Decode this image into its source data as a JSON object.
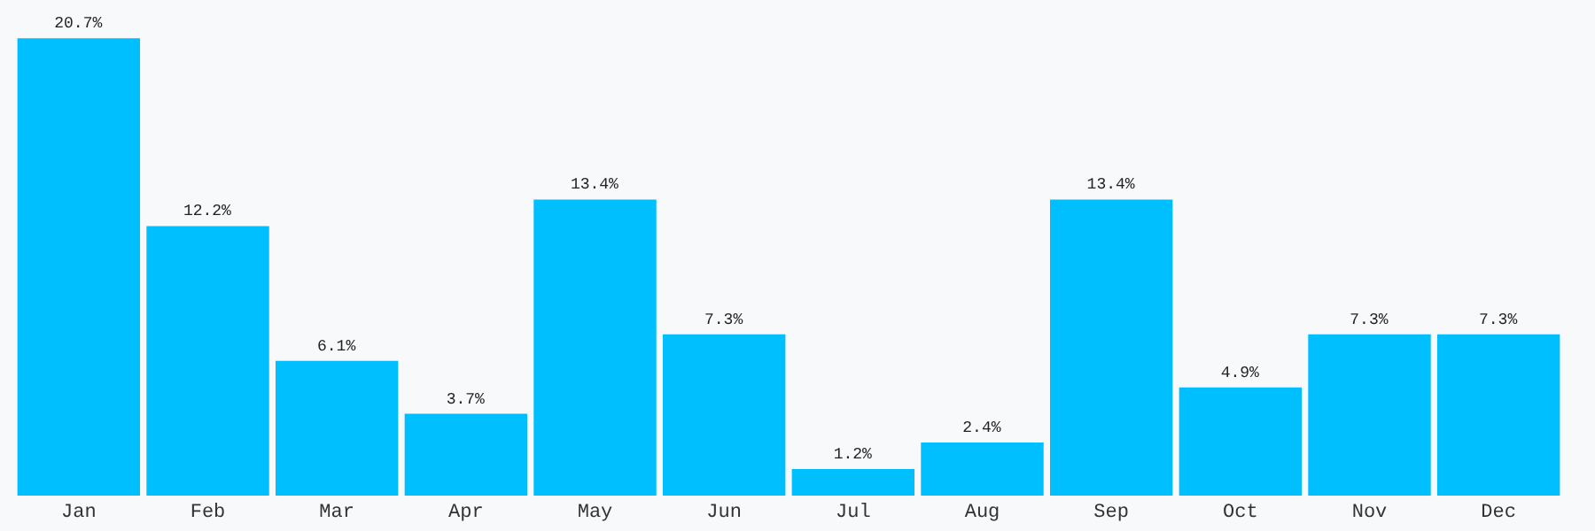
{
  "chart_data": {
    "type": "bar",
    "categories": [
      "Jan",
      "Feb",
      "Mar",
      "Apr",
      "May",
      "Jun",
      "Jul",
      "Aug",
      "Sep",
      "Oct",
      "Nov",
      "Dec"
    ],
    "values": [
      20.7,
      12.2,
      6.1,
      3.7,
      13.4,
      7.3,
      1.2,
      2.4,
      13.4,
      4.9,
      7.3,
      7.3
    ],
    "value_labels": [
      "20.7%",
      "12.2%",
      "6.1%",
      "3.7%",
      "13.4%",
      "7.3%",
      "1.2%",
      "2.4%",
      "13.4%",
      "4.9%",
      "7.3%",
      "7.3%"
    ],
    "color": "#00bfff",
    "grid": false,
    "legend": false
  }
}
